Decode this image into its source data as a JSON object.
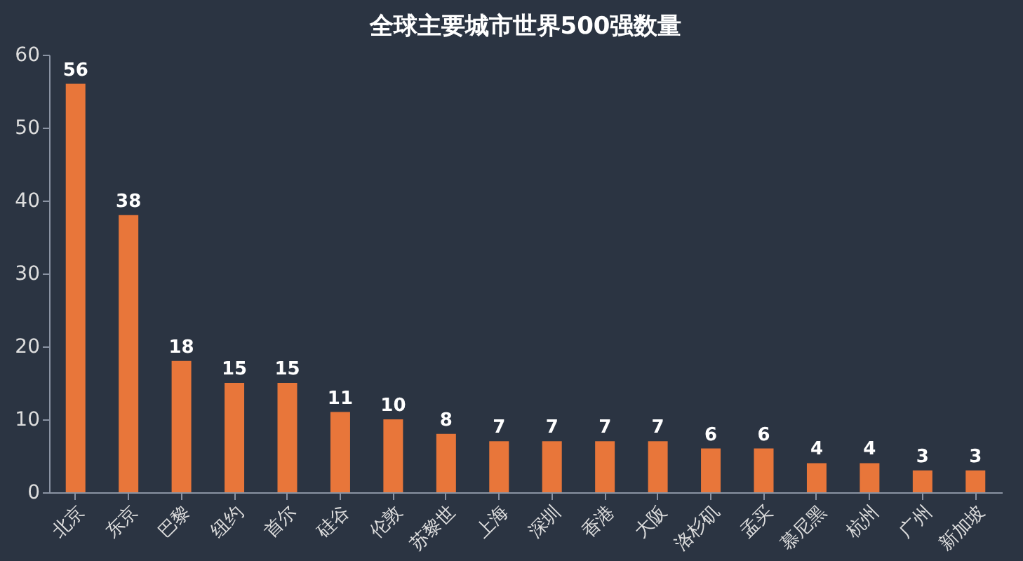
{
  "chart_data": {
    "type": "bar",
    "title": "全球主要城市世界500强数量",
    "categories": [
      "北京",
      "东京",
      "巴黎",
      "纽约",
      "首尔",
      "硅谷",
      "伦敦",
      "苏黎世",
      "上海",
      "深圳",
      "香港",
      "大阪",
      "洛杉矶",
      "孟买",
      "慕尼黑",
      "杭州",
      "广州",
      "新加坡"
    ],
    "values": [
      56,
      38,
      18,
      15,
      15,
      11,
      10,
      8,
      7,
      7,
      7,
      7,
      6,
      6,
      4,
      4,
      3,
      3
    ],
    "color": "#e8763a",
    "ylim": [
      0,
      60
    ],
    "yticks": [
      0,
      10,
      20,
      30,
      40,
      50,
      60
    ],
    "grid": false,
    "data_labels": true
  }
}
